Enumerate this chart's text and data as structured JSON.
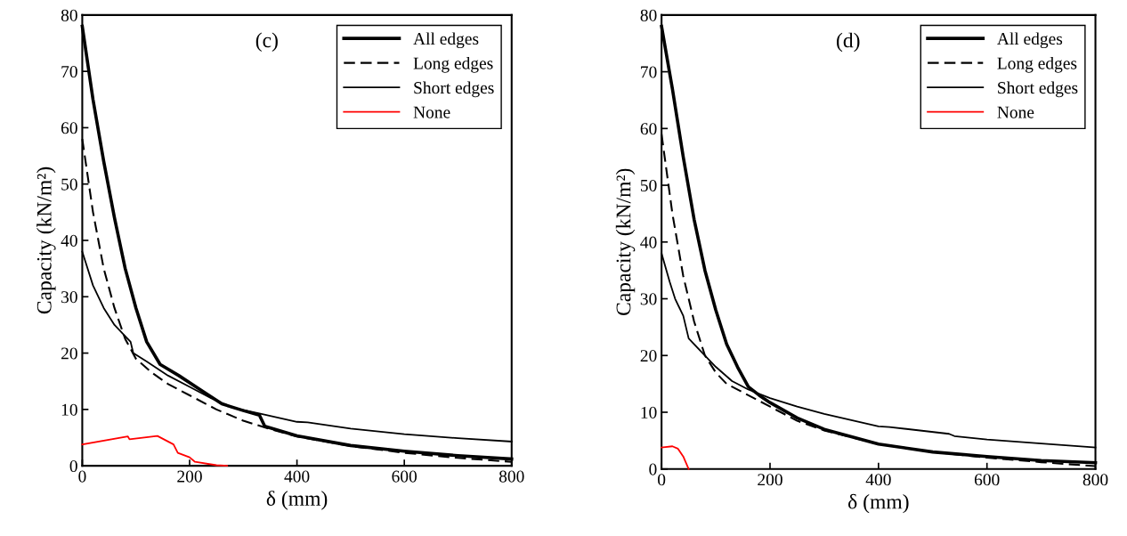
{
  "chart_data": [
    {
      "type": "line",
      "xlabel": "δ (mm)",
      "ylabel": "Capacity (kN/m²)",
      "annotations": [
        "(c)"
      ],
      "xlim": [
        0,
        800
      ],
      "ylim": [
        0,
        80
      ],
      "xticks": [
        0,
        200,
        400,
        600,
        800
      ],
      "yticks": [
        0,
        10,
        20,
        30,
        40,
        50,
        60,
        70,
        80
      ],
      "grid": false,
      "legend": "top right",
      "marker": "none",
      "series": [
        {
          "name": "All edges",
          "color": "#000000",
          "line_style": "solid",
          "x": [
            0,
            20,
            40,
            60,
            80,
            100,
            120,
            145,
            180,
            220,
            260,
            300,
            330,
            340,
            400,
            500,
            600,
            700,
            800
          ],
          "values": [
            78,
            65,
            54,
            44,
            35,
            28,
            22,
            18,
            16,
            13.5,
            11,
            9.8,
            9,
            7,
            5.3,
            3.6,
            2.6,
            1.8,
            1.2
          ]
        },
        {
          "name": "Long edges",
          "color": "#000000",
          "line_style": "dashed",
          "x": [
            0,
            20,
            40,
            60,
            80,
            100,
            130,
            160,
            200,
            250,
            300,
            350,
            400,
            500,
            600,
            700,
            800
          ],
          "values": [
            58,
            45,
            35,
            28,
            22.5,
            19,
            16.5,
            14.5,
            12.5,
            10,
            8,
            6.5,
            5.2,
            3.5,
            2.3,
            1.4,
            0.7
          ]
        },
        {
          "name": "Short edges",
          "color": "#000000",
          "line_style": "solid",
          "x": [
            0,
            20,
            40,
            60,
            80,
            90,
            95,
            120,
            160,
            200,
            240,
            280,
            330,
            400,
            420,
            500,
            600,
            700,
            800
          ],
          "values": [
            38,
            32,
            28,
            25,
            23,
            22,
            20,
            18.5,
            16,
            14,
            12,
            10.3,
            9.3,
            7.8,
            7.7,
            6.6,
            5.6,
            4.9,
            4.3
          ]
        },
        {
          "name": "None",
          "color": "#ff0000",
          "line_style": "solid",
          "x": [
            0,
            85,
            88,
            140,
            170,
            178,
            200,
            210,
            250,
            270
          ],
          "values": [
            3.8,
            5.2,
            4.7,
            5.3,
            3.8,
            2.3,
            1.5,
            0.7,
            0.1,
            0
          ]
        }
      ]
    },
    {
      "type": "line",
      "xlabel": "δ (mm)",
      "ylabel": "Capacity (kN/m²)",
      "annotations": [
        "(d)"
      ],
      "xlim": [
        0,
        800
      ],
      "ylim": [
        0,
        80
      ],
      "xticks": [
        0,
        200,
        400,
        600,
        800
      ],
      "yticks": [
        0,
        10,
        20,
        30,
        40,
        50,
        60,
        70,
        80
      ],
      "grid": false,
      "legend": "top right",
      "marker": "none",
      "series": [
        {
          "name": "All edges",
          "color": "#000000",
          "line_style": "solid",
          "x": [
            0,
            20,
            40,
            60,
            80,
            100,
            120,
            140,
            160,
            180,
            200,
            250,
            300,
            400,
            500,
            600,
            700,
            800
          ],
          "values": [
            78,
            67,
            55,
            44,
            35,
            28,
            22,
            18,
            14.5,
            13,
            11.7,
            9,
            7,
            4.4,
            3,
            2.2,
            1.5,
            1.1
          ]
        },
        {
          "name": "Long edges",
          "color": "#000000",
          "line_style": "dashed",
          "x": [
            0,
            20,
            40,
            60,
            80,
            100,
            120,
            150,
            200,
            250,
            300,
            400,
            500,
            600,
            700,
            800
          ],
          "values": [
            59,
            45,
            34,
            26,
            20,
            17,
            15,
            13.5,
            11,
            8.5,
            6.8,
            4.4,
            3,
            2,
            1.2,
            0.5
          ]
        },
        {
          "name": "Short edges",
          "color": "#000000",
          "line_style": "solid",
          "x": [
            0,
            15,
            25,
            40,
            50,
            80,
            100,
            130,
            160,
            200,
            250,
            300,
            400,
            420,
            530,
            540,
            600,
            700,
            800
          ],
          "values": [
            38,
            33,
            30,
            27,
            23,
            20,
            18,
            15.5,
            14,
            12.5,
            11,
            9.7,
            7.5,
            7.4,
            6.2,
            5.8,
            5.2,
            4.5,
            3.8
          ]
        },
        {
          "name": "None",
          "color": "#ff0000",
          "line_style": "solid",
          "x": [
            0,
            20,
            30,
            40,
            50
          ],
          "values": [
            3.8,
            4,
            3.6,
            2.2,
            0
          ]
        }
      ]
    }
  ]
}
